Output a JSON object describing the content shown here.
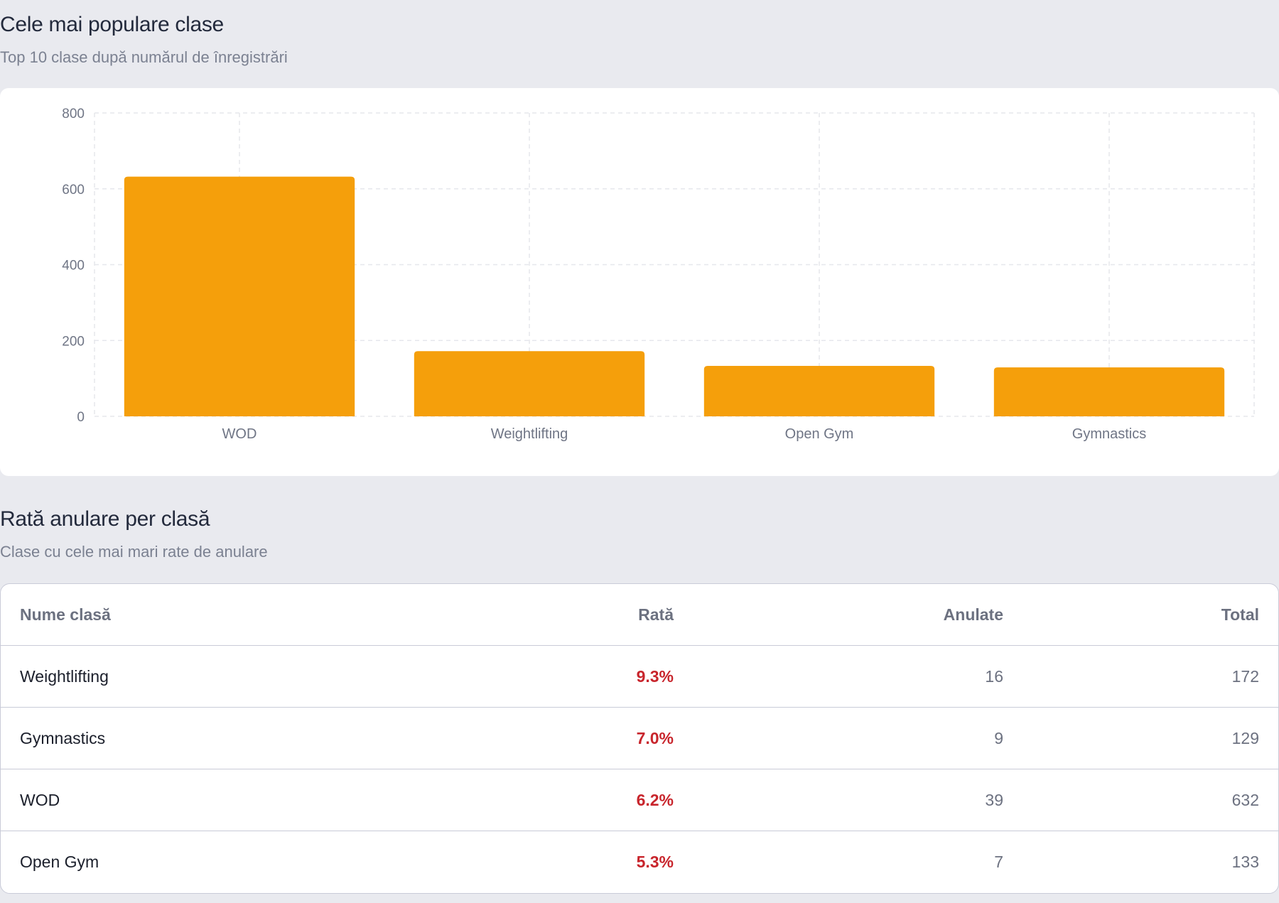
{
  "popular": {
    "title": "Cele mai populare clase",
    "subtitle": "Top 10 clase după numărul de înregistrări"
  },
  "chart_data": {
    "type": "bar",
    "categories": [
      "WOD",
      "Weightlifting",
      "Open Gym",
      "Gymnastics"
    ],
    "values": [
      632,
      172,
      133,
      129
    ],
    "ylim": [
      0,
      800
    ],
    "yticks": [
      0,
      200,
      400,
      600,
      800
    ],
    "grid": true,
    "bar_color": "#f59f0b"
  },
  "cancellations": {
    "title": "Rată anulare per clasă",
    "subtitle": "Clase cu cele mai mari rate de anulare",
    "headers": {
      "name": "Nume clasă",
      "rate": "Rată",
      "cancelled": "Anulate",
      "total": "Total"
    },
    "rows": [
      {
        "name": "Weightlifting",
        "rate": "9.3%",
        "cancelled": "16",
        "total": "172"
      },
      {
        "name": "Gymnastics",
        "rate": "7.0%",
        "cancelled": "9",
        "total": "129"
      },
      {
        "name": "WOD",
        "rate": "6.2%",
        "cancelled": "39",
        "total": "632"
      },
      {
        "name": "Open Gym",
        "rate": "5.3%",
        "cancelled": "7",
        "total": "133"
      }
    ],
    "rate_color": "#c8252c"
  }
}
